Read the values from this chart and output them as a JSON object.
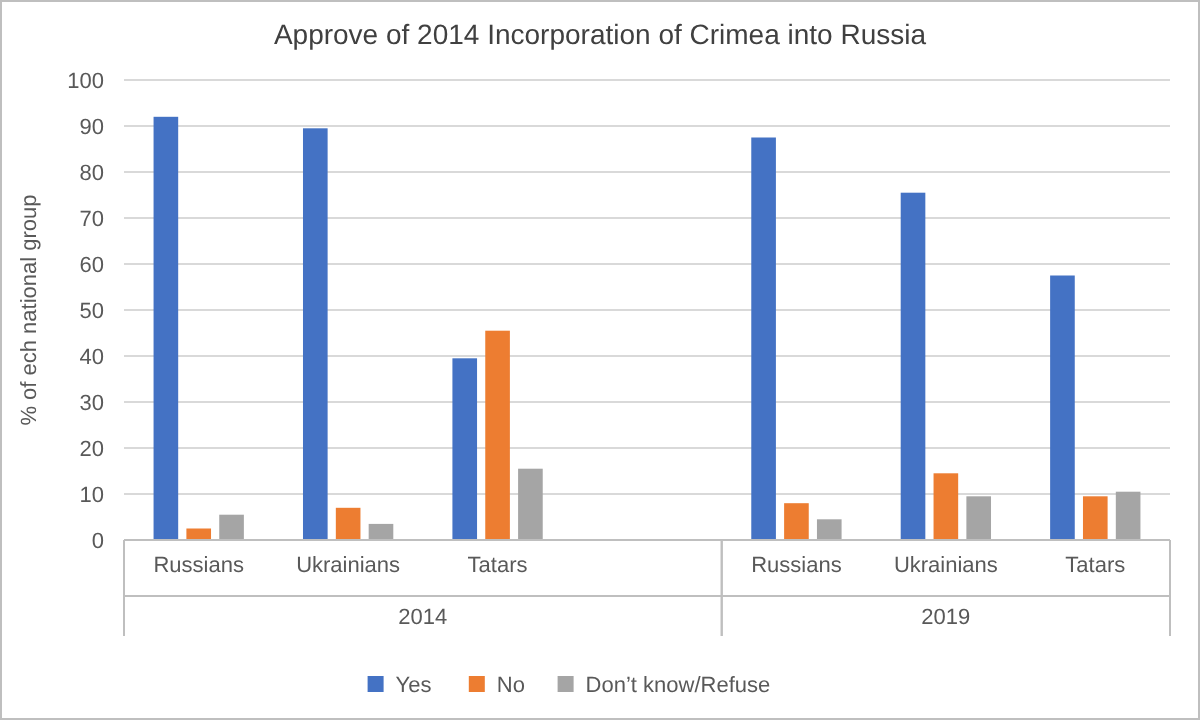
{
  "chart_data": {
    "type": "bar",
    "title": "Approve of 2014 Incorporation of Crimea into Russia",
    "ylabel": "% of ech national group",
    "categories": [
      "Russians",
      "Ukrainians",
      "Tatars",
      null,
      "Russians",
      "Ukrainians",
      "Tatars"
    ],
    "annotations": [
      "2014",
      "2019"
    ],
    "series": [
      {
        "name": "Yes",
        "color": "#4472c4",
        "values": [
          92,
          89.5,
          39.5,
          null,
          87.5,
          75.5,
          57.5
        ]
      },
      {
        "name": "No",
        "color": "#ed7d31",
        "values": [
          2.5,
          7,
          45.5,
          null,
          8,
          14.5,
          9.5
        ]
      },
      {
        "name": "Don’t know/Refuse",
        "color": "#a5a5a5",
        "values": [
          5.5,
          3.5,
          15.5,
          null,
          4.5,
          9.5,
          10.5
        ]
      }
    ],
    "ylim": [
      0,
      100
    ],
    "yticks": [
      0,
      10,
      20,
      30,
      40,
      50,
      60,
      70,
      80,
      90,
      100
    ],
    "grid": "y",
    "legend": "bottom"
  }
}
